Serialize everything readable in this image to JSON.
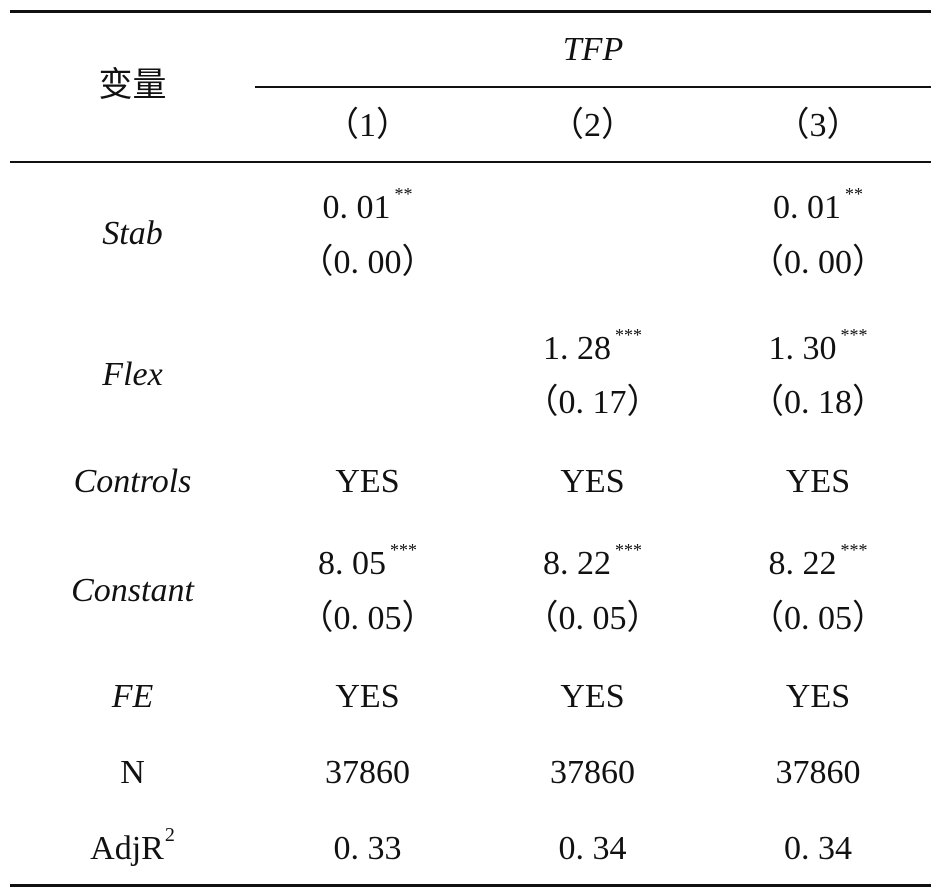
{
  "header": {
    "var_label": "变量",
    "group_label": "TFP",
    "columns": [
      "（1）",
      "（2）",
      "（3）"
    ]
  },
  "rows": {
    "stab": {
      "label": "Stab",
      "c1_coef": "0. 01",
      "c1_star": "**",
      "c1_se": "（0. 00）",
      "c3_coef": "0. 01",
      "c3_star": "**",
      "c3_se": "（0. 00）"
    },
    "flex": {
      "label": "Flex",
      "c2_coef": "1. 28",
      "c2_star": "***",
      "c2_se": "（0. 17）",
      "c3_coef": "1. 30",
      "c3_star": "***",
      "c3_se": "（0. 18）"
    },
    "controls": {
      "label": "Controls",
      "c1": "YES",
      "c2": "YES",
      "c3": "YES"
    },
    "constant": {
      "label": "Constant",
      "c1_coef": "8. 05",
      "c1_star": "***",
      "c1_se": "（0. 05）",
      "c2_coef": "8. 22",
      "c2_star": "***",
      "c2_se": "（0. 05）",
      "c3_coef": "8. 22",
      "c3_star": "***",
      "c3_se": "（0. 05）"
    },
    "fe": {
      "label": "FE",
      "c1": "YES",
      "c2": "YES",
      "c3": "YES"
    },
    "n": {
      "label": "N",
      "c1": "37860",
      "c2": "37860",
      "c3": "37860"
    },
    "adjr2": {
      "label": "AdjR",
      "label_sup": "2",
      "c1": "0. 33",
      "c2": "0. 34",
      "c3": "0. 34"
    }
  }
}
